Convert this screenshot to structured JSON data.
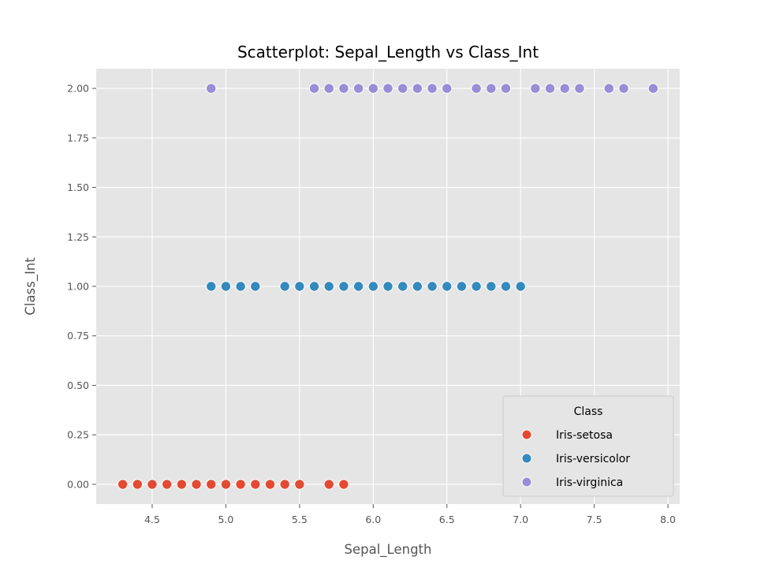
{
  "chart_data": {
    "type": "scatter",
    "title": "Scatterplot: Sepal_Length vs Class_Int",
    "xlabel": "Sepal_Length",
    "ylabel": "Class_Int",
    "xlim": [
      4.12,
      8.08
    ],
    "ylim": [
      -0.1,
      2.1
    ],
    "xticks": [
      "4.5",
      "5.0",
      "5.5",
      "6.0",
      "6.5",
      "7.0",
      "7.5",
      "8.0"
    ],
    "yticks": [
      "0.00",
      "0.25",
      "0.50",
      "0.75",
      "1.00",
      "1.25",
      "1.50",
      "1.75",
      "2.00"
    ],
    "grid": true,
    "legend": {
      "title": "Class",
      "placement": "lower-right"
    },
    "series": [
      {
        "name": "Iris-setosa",
        "color": "#E24A33",
        "y": 0,
        "x": [
          4.3,
          4.4,
          4.5,
          4.6,
          4.7,
          4.8,
          4.9,
          5.0,
          5.1,
          5.2,
          5.3,
          5.4,
          5.5,
          5.7,
          5.8
        ]
      },
      {
        "name": "Iris-versicolor",
        "color": "#348ABD",
        "y": 1,
        "x": [
          4.9,
          5.0,
          5.1,
          5.2,
          5.4,
          5.5,
          5.6,
          5.7,
          5.8,
          5.9,
          6.0,
          6.1,
          6.2,
          6.3,
          6.4,
          6.5,
          6.6,
          6.7,
          6.8,
          6.9,
          7.0
        ]
      },
      {
        "name": "Iris-virginica",
        "color": "#988ED5",
        "y": 2,
        "x": [
          4.9,
          5.6,
          5.7,
          5.8,
          5.9,
          6.0,
          6.1,
          6.2,
          6.3,
          6.4,
          6.5,
          6.7,
          6.8,
          6.9,
          7.1,
          7.2,
          7.3,
          7.4,
          7.6,
          7.7,
          7.9
        ]
      }
    ]
  }
}
